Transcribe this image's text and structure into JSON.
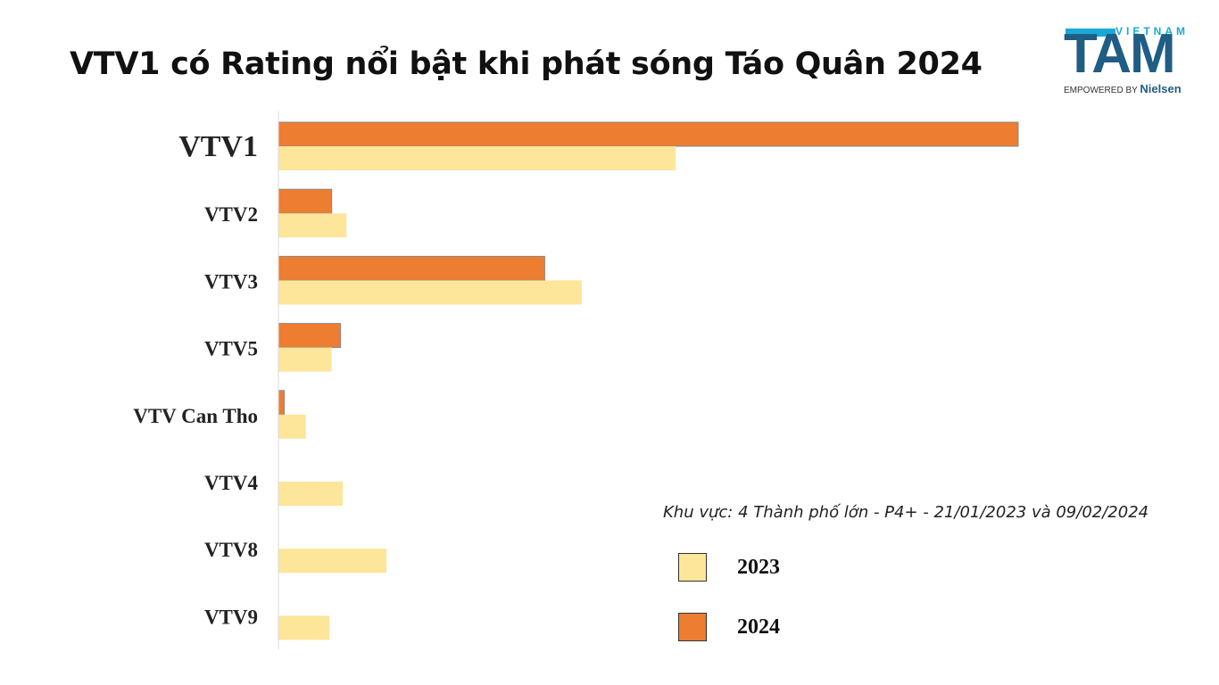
{
  "page": {
    "title": "VTV1 có Rating nổi bật khi phát sóng Táo Quân 2024",
    "note": "Khu vực: 4 Thành phố lớn - P4+ - 21/01/2023 và 09/02/2024"
  },
  "logo": {
    "top_text": "VIETNAM",
    "main_text": "TAM",
    "sub_text": "EMPOWERED BY",
    "brand": "Nielsen"
  },
  "colors": {
    "series_2023": "#fde59a",
    "series_2024": "#ed7d31",
    "highlight_label": "#b01010",
    "label": "#222222"
  },
  "chart_data": {
    "type": "bar",
    "orientation": "horizontal",
    "categories": [
      "VTV1",
      "VTV2",
      "VTV3",
      "VTV5",
      "VTV Can Tho",
      "VTV4",
      "VTV8",
      "VTV9"
    ],
    "highlight_category": "VTV1",
    "series": [
      {
        "name": "2024",
        "values": [
          100,
          7.2,
          36,
          8.4,
          0.8,
          0,
          0,
          0
        ]
      },
      {
        "name": "2023",
        "values": [
          53.7,
          9.2,
          41,
          7.2,
          3.7,
          8.7,
          14.6,
          6.9
        ]
      }
    ],
    "xlim": [
      0,
      100
    ],
    "grid": false,
    "legend_position": "bottom-right",
    "legend": [
      {
        "label": "2023",
        "series": "2023"
      },
      {
        "label": "2024",
        "series": "2024"
      }
    ]
  }
}
